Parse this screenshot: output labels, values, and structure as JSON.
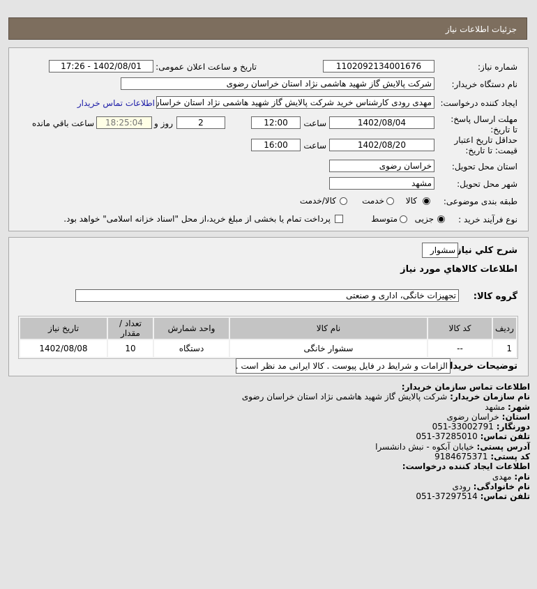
{
  "header": {
    "title": "جزئیات اطلاعات نیاز"
  },
  "form": {
    "need_number_label": "شماره نیاز:",
    "need_number": "1102092134001676",
    "announce_label": "تاریخ و ساعت اعلان عمومی:",
    "announce_value": "1402/08/01 - 17:26",
    "buyer_label": "نام دستگاه خریدار:",
    "buyer_value": "شرکت پالایش گاز شهید هاشمی نژاد   استان خراسان رضوی",
    "creator_label": "ایجاد کننده درخواست:",
    "creator_value": "مهدی رودی کارشناس خرید شرکت پالایش گاز شهید هاشمی نژاد   استان خراسان رضوی",
    "contact_link": "اطلاعات تماس خریدار",
    "deadline_label": "مهلت ارسال پاسخ: تا تاریخ:",
    "deadline_date": "1402/08/04",
    "time_label": "ساعت",
    "deadline_time": "12:00",
    "days": "2",
    "days_label": "روز و",
    "remaining": "18:25:04",
    "remaining_label": "ساعت باقي مانده",
    "validity_label": "حداقل تاریخ اعتبار قیمت: تا تاریخ:",
    "validity_date": "1402/08/20",
    "validity_time": "16:00",
    "province_label": "استان محل تحویل:",
    "province": "خراسان رضوی",
    "city_label": "شهر محل تحویل:",
    "city": "مشهد",
    "category_label": "طبقه بندی موضوعی:",
    "category_options": [
      "کالا",
      "خدمت",
      "کالا/خدمت"
    ],
    "category_selected": "کالا",
    "process_label": "نوع فرآیند خرید :",
    "process_options": [
      "جزیی",
      "متوسط"
    ],
    "process_selected": "جزیی",
    "payment_note": "پرداخت تمام یا بخشی از مبلغ خرید،از محل \"اسناد خزانه اسلامی\" خواهد بود.",
    "payment_checked": false
  },
  "details": {
    "summary_label": "شرح کلي نياز:",
    "summary": "سشوار",
    "goods_title": "اطلاعات کالاهاي مورد نياز",
    "group_label": "گروه کالا:",
    "group": "تجهیزات خانگی، اداری و صنعتی",
    "table": {
      "headers": [
        "ردیف",
        "کد کالا",
        "نام کالا",
        "واحد شمارش",
        "تعداد / مقدار",
        "تاریخ نیاز"
      ],
      "rows": [
        [
          "1",
          "--",
          "سشوار خانگی",
          "دستگاه",
          "10",
          "1402/08/08"
        ]
      ]
    },
    "notes_label": "توضیحات خریدار:",
    "notes": "الزامات و شرایط در فایل پیوست . کالا ایرانی مد نظر است ."
  },
  "contact": {
    "title": "اطلاعات تماس سازمان خریدار:",
    "org_label": "نام سازمان خریدار:",
    "org": "شرکت پالایش گاز شهید هاشمی نژاد استان خراسان رضوی",
    "city_label": "شهر:",
    "city": "مشهد",
    "province_label": "استان:",
    "province": "خراسان رضوی",
    "fax_label": "دورنگار:",
    "fax": "33002791-051",
    "phone_label": "تلفن تماس:",
    "phone": "37285010-051",
    "address_label": "آدرس پستی:",
    "address": "خیابان آبکوه - نبش دانشسرا",
    "postal_label": "کد پستی:",
    "postal": "9184675371",
    "creator_title": "اطلاعات ایجاد کننده درخواست:",
    "name_label": "نام:",
    "name": "مهدی",
    "family_label": "نام خانوادگی:",
    "family": "رودی",
    "cphone_label": "تلفن تماس:",
    "cphone": "37297514-051"
  }
}
